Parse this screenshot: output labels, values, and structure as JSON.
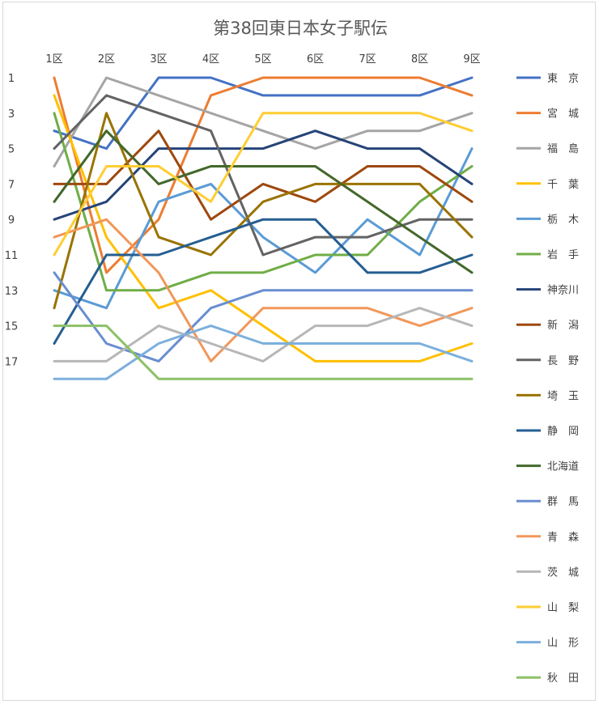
{
  "chart_data": {
    "type": "line",
    "title": "第38回東日本女子駅伝",
    "categories": [
      "1区",
      "2区",
      "3区",
      "4区",
      "5区",
      "6区",
      "7区",
      "8区",
      "9区"
    ],
    "y_ticks": [
      "1",
      "3",
      "5",
      "7",
      "9",
      "11",
      "13",
      "15",
      "17"
    ],
    "ylim": [
      1,
      18
    ],
    "y_reversed": true,
    "grid": false,
    "legend_position": "right",
    "series": [
      {
        "name": "東　京",
        "color": "#4472C4",
        "values": [
          4,
          5,
          1,
          1,
          2,
          2,
          2,
          2,
          1
        ]
      },
      {
        "name": "宮　城",
        "color": "#ED7D31",
        "values": [
          1,
          12,
          9,
          2,
          1,
          1,
          1,
          1,
          2
        ]
      },
      {
        "name": "福　島",
        "color": "#A5A5A5",
        "values": [
          6,
          1,
          2,
          3,
          4,
          5,
          4,
          4,
          3
        ]
      },
      {
        "name": "千　葉",
        "color": "#FFC000",
        "values": [
          2,
          10,
          14,
          13,
          15,
          17,
          17,
          17,
          16
        ]
      },
      {
        "name": "栃　木",
        "color": "#5B9BD5",
        "values": [
          13,
          14,
          8,
          7,
          10,
          12,
          9,
          11,
          5
        ]
      },
      {
        "name": "岩　手",
        "color": "#70AD47",
        "values": [
          3,
          13,
          13,
          12,
          12,
          11,
          11,
          8,
          6
        ]
      },
      {
        "name": "神奈川",
        "color": "#264478",
        "values": [
          9,
          8,
          5,
          5,
          5,
          4,
          5,
          5,
          7
        ]
      },
      {
        "name": "新　潟",
        "color": "#9E480E",
        "values": [
          7,
          7,
          4,
          9,
          7,
          8,
          6,
          6,
          8
        ]
      },
      {
        "name": "長　野",
        "color": "#636363",
        "values": [
          5,
          2,
          3,
          4,
          11,
          10,
          10,
          9,
          9
        ]
      },
      {
        "name": "埼　玉",
        "color": "#997300",
        "values": [
          14,
          3,
          10,
          11,
          8,
          7,
          7,
          7,
          10
        ]
      },
      {
        "name": "静　岡",
        "color": "#255E91",
        "values": [
          16,
          11,
          11,
          10,
          9,
          9,
          12,
          12,
          11
        ]
      },
      {
        "name": "北海道",
        "color": "#43682B",
        "values": [
          8,
          4,
          7,
          6,
          6,
          6,
          8,
          10,
          12
        ]
      },
      {
        "name": "群　馬",
        "color": "#698ED0",
        "values": [
          12,
          16,
          17,
          14,
          13,
          13,
          13,
          13,
          13
        ]
      },
      {
        "name": "青　森",
        "color": "#F1975A",
        "values": [
          10,
          9,
          12,
          17,
          14,
          14,
          14,
          15,
          14
        ]
      },
      {
        "name": "茨　城",
        "color": "#B7B7B7",
        "values": [
          17,
          17,
          15,
          16,
          17,
          15,
          15,
          14,
          15
        ]
      },
      {
        "name": "山　梨",
        "color": "#FFCD33",
        "values": [
          11,
          6,
          6,
          8,
          3,
          3,
          3,
          3,
          4
        ]
      },
      {
        "name": "山　形",
        "color": "#7CAFDD",
        "values": [
          18,
          18,
          16,
          15,
          16,
          16,
          16,
          16,
          17
        ]
      },
      {
        "name": "秋　田",
        "color": "#8CC168",
        "values": [
          15,
          15,
          18,
          18,
          18,
          18,
          18,
          18,
          18
        ]
      }
    ]
  }
}
